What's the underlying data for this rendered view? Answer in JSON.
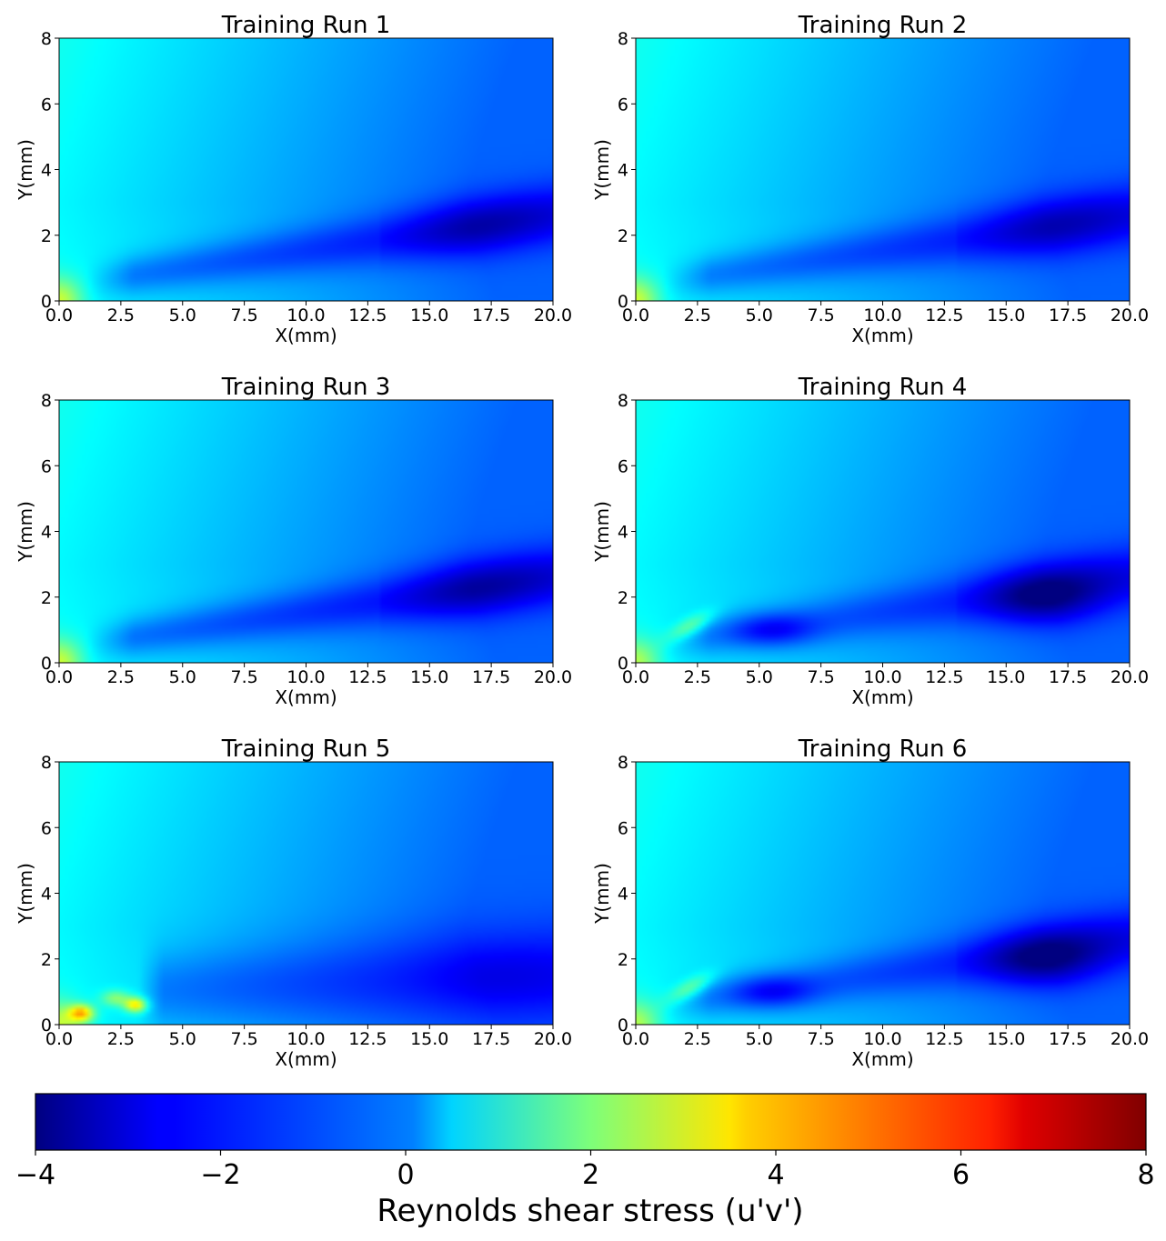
{
  "chart_data": {
    "type": "heatmap",
    "layout": "3 rows x 2 columns of heatmap panels with one shared horizontal colorbar",
    "colormap": "jet",
    "x_ticks": [
      "0.0",
      "2.5",
      "5.0",
      "7.5",
      "10.0",
      "12.5",
      "15.0",
      "17.5",
      "20.0"
    ],
    "y_ticks": [
      "0",
      "2",
      "4",
      "6",
      "8"
    ],
    "xlim": [
      0,
      20
    ],
    "ylim": [
      0,
      8
    ],
    "grid": false,
    "panels": [
      {
        "title": "Training Run 1",
        "xlabel": "X(mm)",
        "ylabel": "Y(mm)",
        "variant": 1
      },
      {
        "title": "Training Run 2",
        "xlabel": "X(mm)",
        "ylabel": "Y(mm)",
        "variant": 2
      },
      {
        "title": "Training Run 3",
        "xlabel": "X(mm)",
        "ylabel": "Y(mm)",
        "variant": 3
      },
      {
        "title": "Training Run 4",
        "xlabel": "X(mm)",
        "ylabel": "Y(mm)",
        "variant": 4
      },
      {
        "title": "Training Run 5",
        "xlabel": "X(mm)",
        "ylabel": "Y(mm)",
        "variant": 5
      },
      {
        "title": "Training Run 6",
        "xlabel": "X(mm)",
        "ylabel": "Y(mm)",
        "variant": 6
      }
    ],
    "colorbar": {
      "label": "Reynolds shear stress (u'v')",
      "ticks": [
        "−4",
        "−2",
        "0",
        "2",
        "4",
        "6",
        "8"
      ],
      "range": [
        -4,
        8
      ],
      "orientation": "horizontal",
      "position": "bottom"
    }
  }
}
